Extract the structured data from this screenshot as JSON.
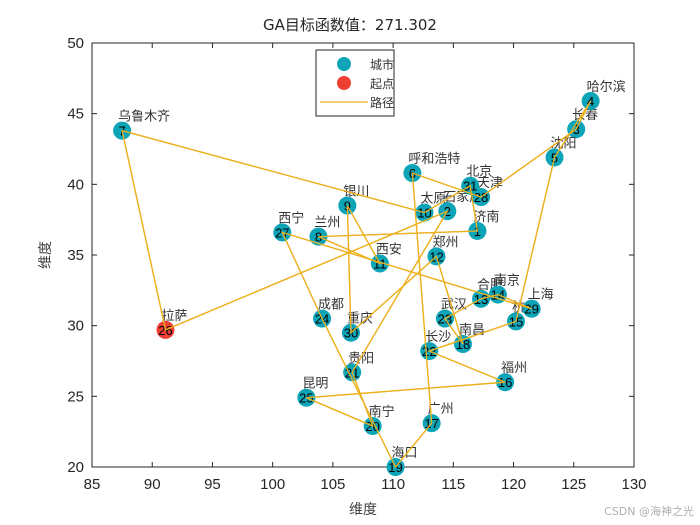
{
  "title": "GA目标函数值：271.302",
  "watermark": "CSDN @海神之光",
  "legend": {
    "items": [
      {
        "label": "城市",
        "type": "marker",
        "color": "#0DA4B8"
      },
      {
        "label": "起点",
        "type": "marker",
        "color": "#EE3F33"
      },
      {
        "label": "路径",
        "type": "line",
        "color": "#EDB120"
      }
    ]
  },
  "colors": {
    "city": "#0DA4B8",
    "start": "#EE3F33",
    "path": "#EDB120"
  },
  "chart_data": {
    "type": "scatter",
    "title": "GA目标函数值：271.302",
    "xlabel": "维度",
    "ylabel": "维度",
    "xlim": [
      85,
      130
    ],
    "ylim": [
      20,
      50
    ],
    "xticks": [
      85,
      90,
      95,
      100,
      105,
      110,
      115,
      120,
      125,
      130
    ],
    "yticks": [
      20,
      25,
      30,
      35,
      40,
      45,
      50
    ],
    "grid": false,
    "legend_position": "top-center",
    "objective_value": 271.302,
    "start_city": 26,
    "cities": [
      {
        "id": 1,
        "name": "济南",
        "x": 117.0,
        "y": 36.7
      },
      {
        "id": 2,
        "name": "石家庄",
        "x": 114.5,
        "y": 38.1
      },
      {
        "id": 3,
        "name": "长春",
        "x": 125.2,
        "y": 43.9
      },
      {
        "id": 4,
        "name": "哈尔滨",
        "x": 126.4,
        "y": 45.9
      },
      {
        "id": 5,
        "name": "沈阳",
        "x": 123.4,
        "y": 41.9
      },
      {
        "id": 6,
        "name": "呼和浩特",
        "x": 111.6,
        "y": 40.8
      },
      {
        "id": 7,
        "name": "乌鲁木齐",
        "x": 87.5,
        "y": 43.8
      },
      {
        "id": 8,
        "name": "兰州",
        "x": 103.8,
        "y": 36.3
      },
      {
        "id": 9,
        "name": "银川",
        "x": 106.2,
        "y": 38.5
      },
      {
        "id": 10,
        "name": "太原",
        "x": 112.6,
        "y": 38.0
      },
      {
        "id": 11,
        "name": "西安",
        "x": 108.9,
        "y": 34.4
      },
      {
        "id": 12,
        "name": "郑州",
        "x": 113.6,
        "y": 34.9
      },
      {
        "id": 13,
        "name": "合肥",
        "x": 117.3,
        "y": 31.9
      },
      {
        "id": 14,
        "name": "南京",
        "x": 118.7,
        "y": 32.2
      },
      {
        "id": 15,
        "name": "杭州",
        "x": 120.2,
        "y": 30.3
      },
      {
        "id": 16,
        "name": "福州",
        "x": 119.3,
        "y": 26.0
      },
      {
        "id": 17,
        "name": "广州",
        "x": 113.2,
        "y": 23.1
      },
      {
        "id": 18,
        "name": "南昌",
        "x": 115.8,
        "y": 28.7
      },
      {
        "id": 19,
        "name": "海口",
        "x": 110.2,
        "y": 20.0
      },
      {
        "id": 20,
        "name": "南宁",
        "x": 108.3,
        "y": 22.9
      },
      {
        "id": 21,
        "name": "贵阳",
        "x": 106.6,
        "y": 26.7
      },
      {
        "id": 22,
        "name": "长沙",
        "x": 113.0,
        "y": 28.2
      },
      {
        "id": 23,
        "name": "武汉",
        "x": 114.3,
        "y": 30.5
      },
      {
        "id": 24,
        "name": "成都",
        "x": 104.1,
        "y": 30.5
      },
      {
        "id": 25,
        "name": "昆明",
        "x": 102.8,
        "y": 24.9
      },
      {
        "id": 26,
        "name": "拉萨",
        "x": 91.1,
        "y": 29.7
      },
      {
        "id": 27,
        "name": "西宁",
        "x": 100.8,
        "y": 36.6
      },
      {
        "id": 28,
        "name": "天津",
        "x": 117.3,
        "y": 39.1
      },
      {
        "id": 29,
        "name": "上海",
        "x": 121.5,
        "y": 31.2
      },
      {
        "id": 30,
        "name": "重庆",
        "x": 106.5,
        "y": 29.5
      },
      {
        "id": 31,
        "name": "北京",
        "x": 116.4,
        "y": 39.9
      }
    ],
    "route": [
      26,
      2,
      21,
      20,
      25,
      16,
      22,
      15,
      5,
      4,
      3,
      28,
      6,
      17,
      19,
      24,
      27,
      29,
      14,
      13,
      23,
      18,
      12,
      30,
      9,
      11,
      8,
      1,
      31,
      10,
      7,
      26
    ]
  }
}
